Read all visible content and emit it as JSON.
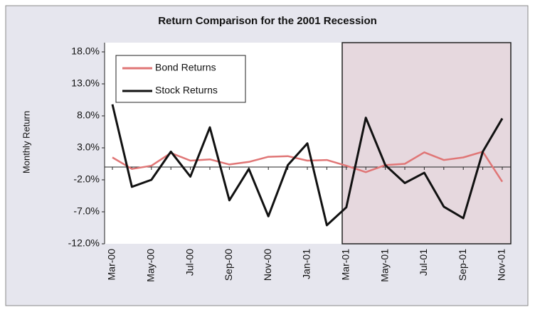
{
  "chart_data": {
    "type": "line",
    "title": "Return Comparison for the 2001 Recession",
    "y_label": "Monthly Return",
    "categories": [
      "Mar-00",
      null,
      "May-00",
      null,
      "Jul-00",
      null,
      "Sep-00",
      null,
      "Nov-00",
      null,
      "Jan-01",
      null,
      "Mar-01",
      null,
      "May-01",
      null,
      "Jul-01",
      null,
      "Sep-01",
      null,
      "Nov-01"
    ],
    "series": [
      {
        "name": "Bond Returns",
        "color": "#e07676",
        "values": [
          1.5,
          -0.3,
          0.2,
          2.2,
          1.0,
          1.2,
          0.4,
          0.8,
          1.6,
          1.7,
          1.0,
          1.1,
          0.2,
          -0.8,
          0.3,
          0.5,
          2.3,
          1.1,
          1.5,
          2.4,
          -2.3
        ]
      },
      {
        "name": "Stock Returns",
        "color": "#111111",
        "values": [
          9.8,
          -3.1,
          -2.0,
          2.4,
          -1.5,
          6.2,
          -5.2,
          -0.3,
          -7.7,
          0.3,
          3.7,
          -9.1,
          -6.3,
          7.7,
          0.3,
          -2.5,
          -0.9,
          -6.2,
          -8.0,
          2.4,
          7.6
        ]
      }
    ],
    "ylim": [
      -12,
      18
    ],
    "yticks": [
      {
        "value": -12,
        "label": "-12.0%"
      },
      {
        "value": -7,
        "label": "-7.0%"
      },
      {
        "value": -2,
        "label": "-2.0%"
      },
      {
        "value": 3,
        "label": "3.0%"
      },
      {
        "value": 8,
        "label": "8.0%"
      },
      {
        "value": 13,
        "label": "13.0%"
      },
      {
        "value": 18,
        "label": "18.0%"
      }
    ],
    "legend": "top-left"
  }
}
